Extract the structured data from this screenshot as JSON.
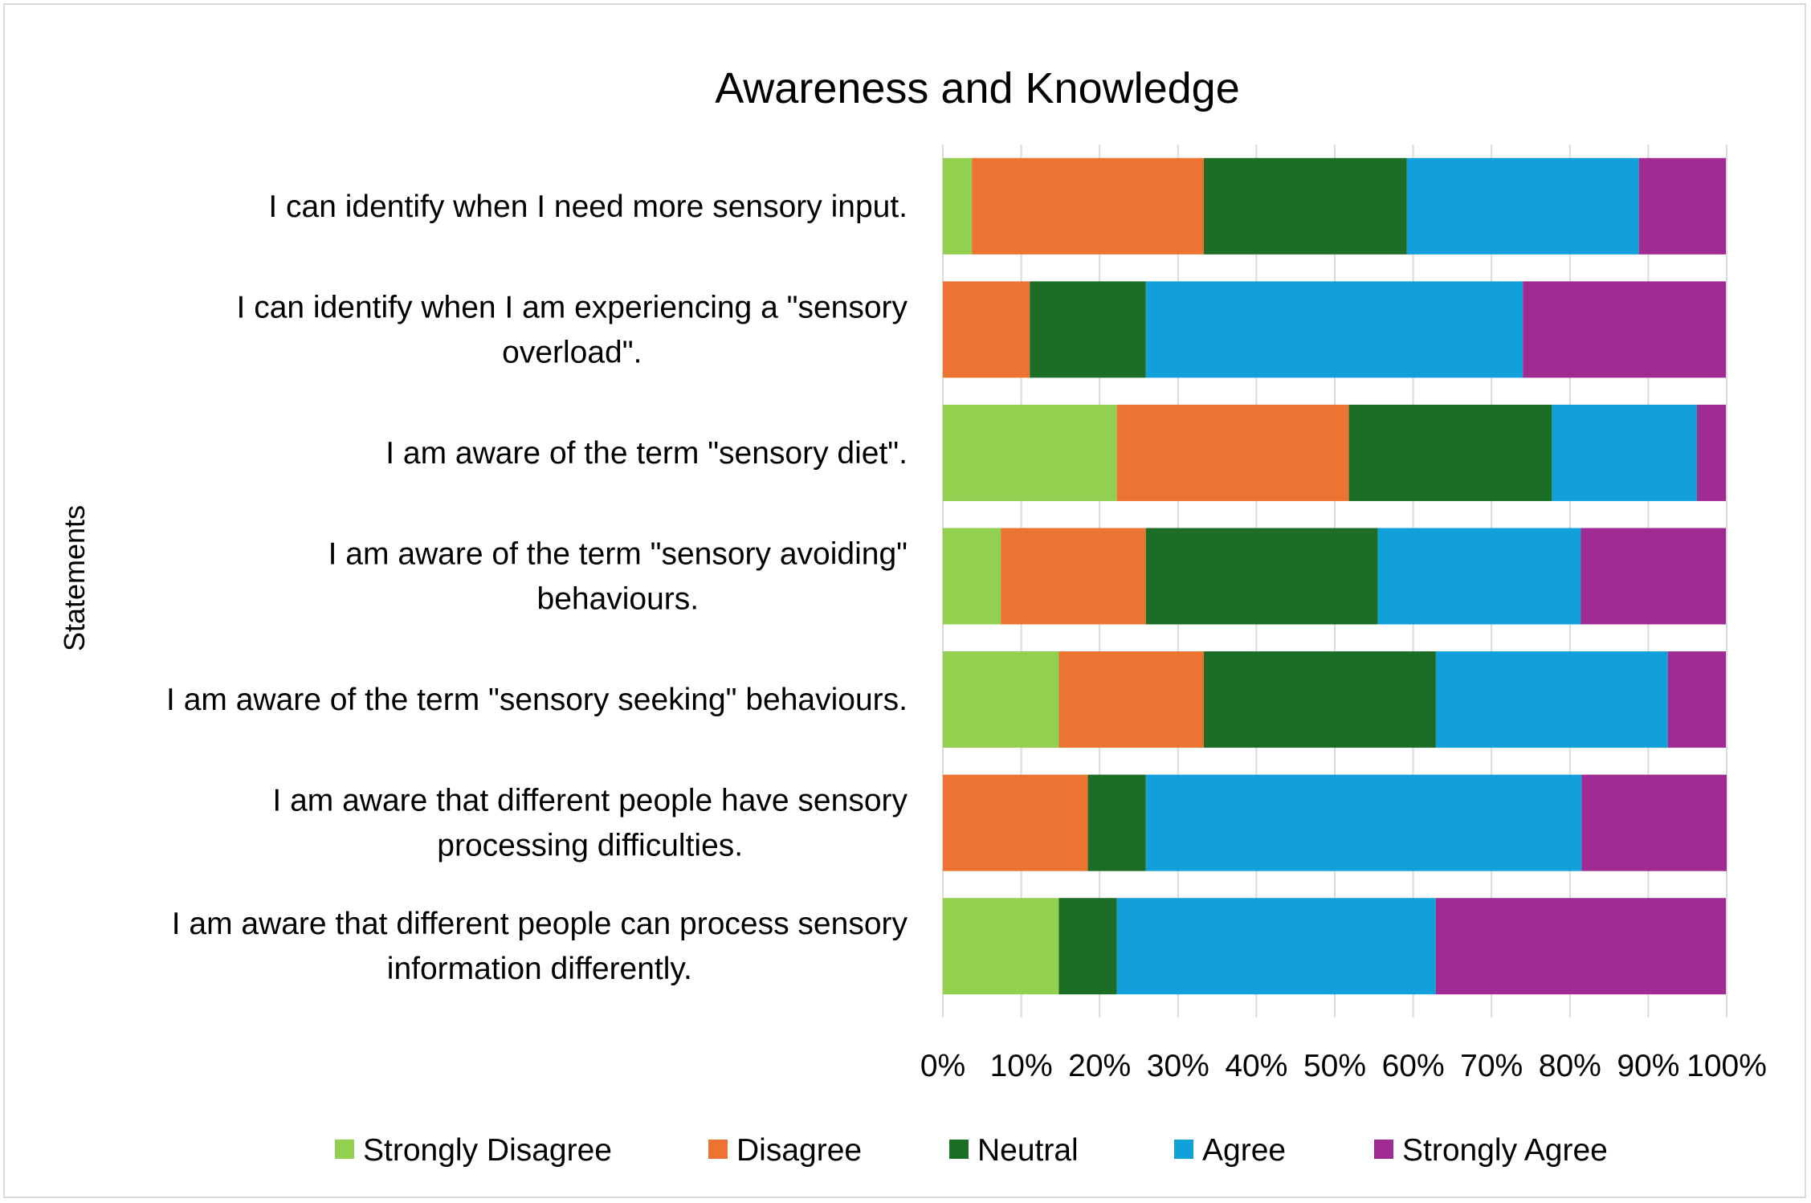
{
  "chart_data": {
    "type": "bar",
    "orientation": "horizontal",
    "stacked": "percent",
    "title": "Awareness and Knowledge",
    "ylabel": "Statements",
    "xlabel": "",
    "xlim": [
      0,
      100
    ],
    "x_ticks": [
      "0%",
      "10%",
      "20%",
      "30%",
      "40%",
      "50%",
      "60%",
      "70%",
      "80%",
      "90%",
      "100%"
    ],
    "grid": "vertical",
    "legend_position": "bottom",
    "categories": [
      [
        "I can identify when I need more sensory input."
      ],
      [
        "I can identify when I am experiencing a \"sensory",
        "overload\"."
      ],
      [
        "I am aware of the term \"sensory diet\"."
      ],
      [
        "I am aware of the term \"sensory avoiding\"",
        "behaviours."
      ],
      [
        "I am aware of the term \"sensory seeking\" behaviours."
      ],
      [
        "I am aware that different people have sensory",
        "processing difficulties."
      ],
      [
        "I am aware that different people can process sensory",
        "information differently."
      ]
    ],
    "series": [
      {
        "name": "Strongly Disagree",
        "color": "#92d050",
        "values": [
          3.7,
          0,
          22.2,
          7.4,
          14.8,
          0,
          14.8
        ]
      },
      {
        "name": "Disagree",
        "color": "#ed7333",
        "values": [
          29.6,
          11.1,
          29.6,
          18.5,
          18.5,
          18.5,
          0
        ]
      },
      {
        "name": "Neutral",
        "color": "#1c6e26",
        "values": [
          25.9,
          14.8,
          25.9,
          29.6,
          29.6,
          7.4,
          7.4
        ]
      },
      {
        "name": "Agree",
        "color": "#11a0d9",
        "values": [
          29.6,
          48.1,
          18.5,
          25.9,
          29.6,
          55.6,
          40.7
        ]
      },
      {
        "name": "Strongly Agree",
        "color": "#a02b93",
        "values": [
          11.1,
          25.9,
          3.7,
          18.5,
          7.4,
          18.5,
          37.0
        ]
      }
    ]
  }
}
